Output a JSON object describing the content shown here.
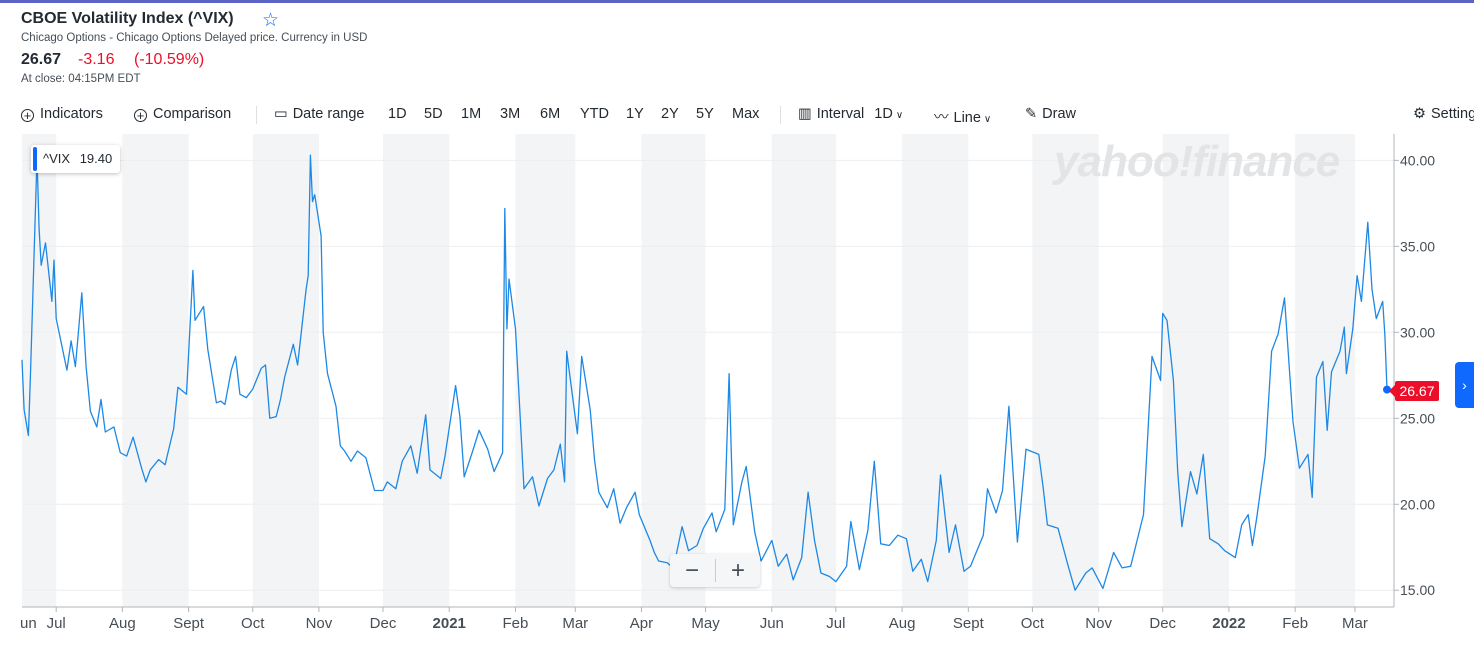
{
  "header": {
    "title": "CBOE Volatility Index (^VIX)",
    "subtitle": "Chicago Options - Chicago Options Delayed price. Currency in USD",
    "price": "26.67",
    "change": "-3.16",
    "change_pct": "(-10.59%)",
    "close_time": "At close: 04:15PM EDT"
  },
  "toolbar": {
    "indicators": "Indicators",
    "comparison": "Comparison",
    "date_range": "Date range",
    "ranges": [
      "1D",
      "5D",
      "1M",
      "3M",
      "6M",
      "YTD",
      "1Y",
      "2Y",
      "5Y",
      "Max"
    ],
    "interval_label": "Interval",
    "interval_value": "1D",
    "chart_type": "Line",
    "draw": "Draw",
    "settings": "Settings"
  },
  "legend": {
    "symbol": "^VIX",
    "value": "19.40"
  },
  "last_price_tag": "26.67",
  "watermark": "yahoo!finance",
  "colors": {
    "line": "#1e88e5",
    "accent": "#0f69ff",
    "negative": "#eb0f29",
    "band": "#f3f4f5"
  },
  "chart_data": {
    "type": "line",
    "series": [
      {
        "name": "^VIX",
        "color": "#1e88e5"
      }
    ],
    "x_labels": [
      "un",
      "Jul",
      "Aug",
      "Sept",
      "Oct",
      "Nov",
      "Dec",
      "2021",
      "Feb",
      "Mar",
      "Apr",
      "May",
      "Jun",
      "Jul",
      "Aug",
      "Sept",
      "Oct",
      "Nov",
      "Dec",
      "2022",
      "Feb",
      "Mar"
    ],
    "y_ticks": [
      "15.00",
      "20.00",
      "25.00",
      "30.00",
      "35.00",
      "40.00"
    ],
    "ylim": [
      14.2,
      41.3
    ],
    "y_axis_side": "right",
    "points": [
      [
        "2020-06-15",
        28.4
      ],
      [
        "2020-06-16",
        25.5
      ],
      [
        "2020-06-18",
        24.0
      ],
      [
        "2020-06-19",
        27.6
      ],
      [
        "2020-06-22",
        40.2
      ],
      [
        "2020-06-23",
        36.0
      ],
      [
        "2020-06-24",
        33.9
      ],
      [
        "2020-06-26",
        35.2
      ],
      [
        "2020-06-29",
        31.8
      ],
      [
        "2020-06-30",
        34.2
      ],
      [
        "2020-07-01",
        30.8
      ],
      [
        "2020-07-06",
        27.8
      ],
      [
        "2020-07-08",
        29.5
      ],
      [
        "2020-07-10",
        28.0
      ],
      [
        "2020-07-13",
        32.3
      ],
      [
        "2020-07-15",
        28.0
      ],
      [
        "2020-07-17",
        25.4
      ],
      [
        "2020-07-20",
        24.5
      ],
      [
        "2020-07-22",
        26.1
      ],
      [
        "2020-07-24",
        24.2
      ],
      [
        "2020-07-28",
        24.5
      ],
      [
        "2020-07-31",
        23.0
      ],
      [
        "2020-08-03",
        22.8
      ],
      [
        "2020-08-06",
        23.9
      ],
      [
        "2020-08-10",
        22.1
      ],
      [
        "2020-08-12",
        21.3
      ],
      [
        "2020-08-14",
        22.0
      ],
      [
        "2020-08-18",
        22.6
      ],
      [
        "2020-08-21",
        22.3
      ],
      [
        "2020-08-25",
        24.4
      ],
      [
        "2020-08-27",
        26.8
      ],
      [
        "2020-08-31",
        26.4
      ],
      [
        "2020-09-03",
        33.6
      ],
      [
        "2020-09-04",
        30.7
      ],
      [
        "2020-09-08",
        31.5
      ],
      [
        "2020-09-10",
        29.0
      ],
      [
        "2020-09-14",
        25.9
      ],
      [
        "2020-09-16",
        26.0
      ],
      [
        "2020-09-18",
        25.8
      ],
      [
        "2020-09-21",
        27.8
      ],
      [
        "2020-09-23",
        28.6
      ],
      [
        "2020-09-25",
        26.4
      ],
      [
        "2020-09-28",
        26.2
      ],
      [
        "2020-10-01",
        26.7
      ],
      [
        "2020-10-05",
        27.9
      ],
      [
        "2020-10-07",
        28.1
      ],
      [
        "2020-10-09",
        25.0
      ],
      [
        "2020-10-12",
        25.1
      ],
      [
        "2020-10-14",
        26.1
      ],
      [
        "2020-10-16",
        27.4
      ],
      [
        "2020-10-20",
        29.3
      ],
      [
        "2020-10-22",
        28.1
      ],
      [
        "2020-10-26",
        32.5
      ],
      [
        "2020-10-27",
        33.3
      ],
      [
        "2020-10-28",
        40.3
      ],
      [
        "2020-10-29",
        37.6
      ],
      [
        "2020-10-30",
        38.0
      ],
      [
        "2020-11-02",
        35.6
      ],
      [
        "2020-11-03",
        30.0
      ],
      [
        "2020-11-05",
        27.6
      ],
      [
        "2020-11-09",
        25.7
      ],
      [
        "2020-11-11",
        23.4
      ],
      [
        "2020-11-13",
        23.1
      ],
      [
        "2020-11-16",
        22.5
      ],
      [
        "2020-11-19",
        23.1
      ],
      [
        "2020-11-23",
        22.7
      ],
      [
        "2020-11-27",
        20.8
      ],
      [
        "2020-12-01",
        20.8
      ],
      [
        "2020-12-03",
        21.3
      ],
      [
        "2020-12-07",
        20.9
      ],
      [
        "2020-12-10",
        22.5
      ],
      [
        "2020-12-14",
        23.4
      ],
      [
        "2020-12-17",
        21.8
      ],
      [
        "2020-12-21",
        25.2
      ],
      [
        "2020-12-23",
        22.0
      ],
      [
        "2020-12-28",
        21.5
      ],
      [
        "2020-12-30",
        22.8
      ],
      [
        "2021-01-04",
        26.9
      ],
      [
        "2021-01-06",
        25.1
      ],
      [
        "2021-01-08",
        21.6
      ],
      [
        "2021-01-12",
        23.1
      ],
      [
        "2021-01-15",
        24.3
      ],
      [
        "2021-01-19",
        23.2
      ],
      [
        "2021-01-22",
        21.9
      ],
      [
        "2021-01-26",
        23.0
      ],
      [
        "2021-01-27",
        37.2
      ],
      [
        "2021-01-28",
        30.2
      ],
      [
        "2021-01-29",
        33.1
      ],
      [
        "2021-02-01",
        30.2
      ],
      [
        "2021-02-03",
        25.6
      ],
      [
        "2021-02-05",
        20.9
      ],
      [
        "2021-02-09",
        21.6
      ],
      [
        "2021-02-12",
        19.9
      ],
      [
        "2021-02-16",
        21.5
      ],
      [
        "2021-02-19",
        22.0
      ],
      [
        "2021-02-22",
        23.5
      ],
      [
        "2021-02-24",
        21.3
      ],
      [
        "2021-02-25",
        28.9
      ],
      [
        "2021-02-26",
        27.9
      ],
      [
        "2021-03-02",
        24.1
      ],
      [
        "2021-03-04",
        28.6
      ],
      [
        "2021-03-08",
        25.5
      ],
      [
        "2021-03-10",
        22.6
      ],
      [
        "2021-03-12",
        20.7
      ],
      [
        "2021-03-16",
        19.8
      ],
      [
        "2021-03-19",
        20.9
      ],
      [
        "2021-03-22",
        18.9
      ],
      [
        "2021-03-25",
        19.8
      ],
      [
        "2021-03-29",
        20.7
      ],
      [
        "2021-03-31",
        19.4
      ],
      [
        "2021-04-05",
        17.9
      ],
      [
        "2021-04-07",
        17.2
      ],
      [
        "2021-04-09",
        16.7
      ],
      [
        "2021-04-13",
        16.6
      ],
      [
        "2021-04-16",
        16.3
      ],
      [
        "2021-04-20",
        18.7
      ],
      [
        "2021-04-23",
        17.3
      ],
      [
        "2021-04-27",
        17.6
      ],
      [
        "2021-04-30",
        18.6
      ],
      [
        "2021-05-04",
        19.5
      ],
      [
        "2021-05-06",
        18.4
      ],
      [
        "2021-05-10",
        19.7
      ],
      [
        "2021-05-12",
        27.6
      ],
      [
        "2021-05-14",
        18.8
      ],
      [
        "2021-05-18",
        21.3
      ],
      [
        "2021-05-20",
        22.2
      ],
      [
        "2021-05-24",
        18.4
      ],
      [
        "2021-05-27",
        16.7
      ],
      [
        "2021-06-01",
        17.9
      ],
      [
        "2021-06-04",
        16.4
      ],
      [
        "2021-06-08",
        17.1
      ],
      [
        "2021-06-11",
        15.6
      ],
      [
        "2021-06-15",
        16.9
      ],
      [
        "2021-06-18",
        20.7
      ],
      [
        "2021-06-21",
        17.9
      ],
      [
        "2021-06-24",
        16.0
      ],
      [
        "2021-06-28",
        15.8
      ],
      [
        "2021-07-01",
        15.5
      ],
      [
        "2021-07-06",
        16.4
      ],
      [
        "2021-07-08",
        19.0
      ],
      [
        "2021-07-12",
        16.2
      ],
      [
        "2021-07-16",
        18.5
      ],
      [
        "2021-07-19",
        22.5
      ],
      [
        "2021-07-22",
        17.7
      ],
      [
        "2021-07-26",
        17.6
      ],
      [
        "2021-07-30",
        18.2
      ],
      [
        "2021-08-03",
        18.0
      ],
      [
        "2021-08-06",
        16.1
      ],
      [
        "2021-08-10",
        16.8
      ],
      [
        "2021-08-13",
        15.5
      ],
      [
        "2021-08-17",
        17.9
      ],
      [
        "2021-08-19",
        21.7
      ],
      [
        "2021-08-23",
        17.2
      ],
      [
        "2021-08-26",
        18.8
      ],
      [
        "2021-08-30",
        16.1
      ],
      [
        "2021-09-02",
        16.4
      ],
      [
        "2021-09-08",
        18.2
      ],
      [
        "2021-09-10",
        20.9
      ],
      [
        "2021-09-14",
        19.5
      ],
      [
        "2021-09-17",
        20.8
      ],
      [
        "2021-09-20",
        25.7
      ],
      [
        "2021-09-24",
        17.8
      ],
      [
        "2021-09-28",
        23.2
      ],
      [
        "2021-09-30",
        23.1
      ],
      [
        "2021-10-04",
        22.9
      ],
      [
        "2021-10-06",
        21.0
      ],
      [
        "2021-10-08",
        18.8
      ],
      [
        "2021-10-13",
        18.6
      ],
      [
        "2021-10-18",
        16.3
      ],
      [
        "2021-10-21",
        15.0
      ],
      [
        "2021-10-26",
        16.0
      ],
      [
        "2021-10-29",
        16.3
      ],
      [
        "2021-11-03",
        15.1
      ],
      [
        "2021-11-08",
        17.2
      ],
      [
        "2021-11-12",
        16.3
      ],
      [
        "2021-11-16",
        16.4
      ],
      [
        "2021-11-22",
        19.4
      ],
      [
        "2021-11-26",
        28.6
      ],
      [
        "2021-11-30",
        27.2
      ],
      [
        "2021-12-01",
        31.1
      ],
      [
        "2021-12-03",
        30.7
      ],
      [
        "2021-12-06",
        27.2
      ],
      [
        "2021-12-08",
        21.9
      ],
      [
        "2021-12-10",
        18.7
      ],
      [
        "2021-12-14",
        21.9
      ],
      [
        "2021-12-17",
        20.6
      ],
      [
        "2021-12-20",
        22.9
      ],
      [
        "2021-12-23",
        18.0
      ],
      [
        "2021-12-27",
        17.7
      ],
      [
        "2021-12-30",
        17.3
      ],
      [
        "2022-01-04",
        16.9
      ],
      [
        "2022-01-07",
        18.8
      ],
      [
        "2022-01-10",
        19.4
      ],
      [
        "2022-01-12",
        17.6
      ],
      [
        "2022-01-14",
        19.2
      ],
      [
        "2022-01-18",
        22.8
      ],
      [
        "2022-01-21",
        28.9
      ],
      [
        "2022-01-24",
        29.9
      ],
      [
        "2022-01-27",
        32.0
      ],
      [
        "2022-01-31",
        24.8
      ],
      [
        "2022-02-03",
        22.1
      ],
      [
        "2022-02-07",
        22.9
      ],
      [
        "2022-02-09",
        20.4
      ],
      [
        "2022-02-11",
        27.4
      ],
      [
        "2022-02-14",
        28.3
      ],
      [
        "2022-02-16",
        24.3
      ],
      [
        "2022-02-18",
        27.7
      ],
      [
        "2022-02-22",
        28.9
      ],
      [
        "2022-02-24",
        30.3
      ],
      [
        "2022-02-25",
        27.6
      ],
      [
        "2022-02-28",
        30.2
      ],
      [
        "2022-03-02",
        33.3
      ],
      [
        "2022-03-04",
        31.8
      ],
      [
        "2022-03-07",
        36.4
      ],
      [
        "2022-03-09",
        32.5
      ],
      [
        "2022-03-11",
        30.8
      ],
      [
        "2022-03-14",
        31.8
      ],
      [
        "2022-03-15",
        29.8
      ],
      [
        "2022-03-16",
        26.67
      ]
    ]
  }
}
